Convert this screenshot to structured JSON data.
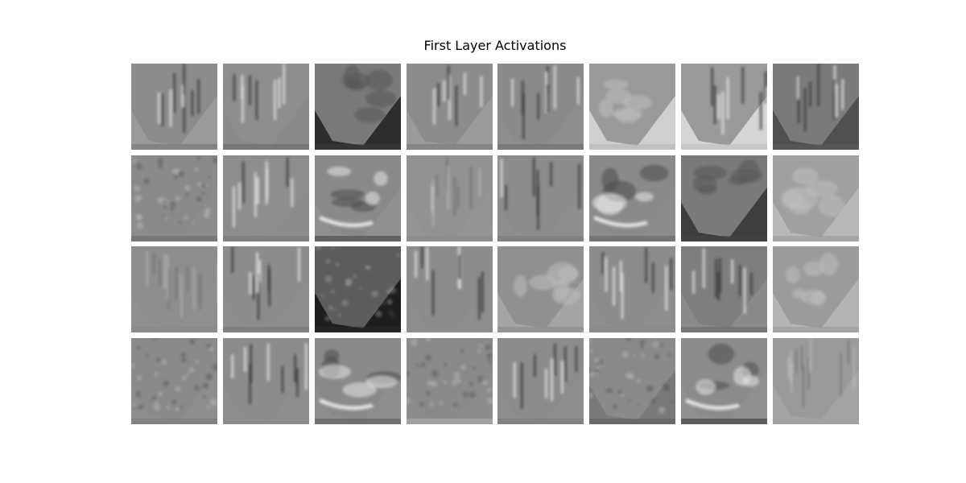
{
  "title": "First Layer Activations",
  "grid": {
    "rows": 4,
    "cols": 8
  },
  "tiles": [
    {
      "bg": "#8c8c8c",
      "lower": "#9a9a9a",
      "pattern": "diag-right",
      "edge": "#777777"
    },
    {
      "bg": "#8e8e8e",
      "lower": "#8a8a8a",
      "pattern": "v-shape",
      "edge": "#6a6a6a"
    },
    {
      "bg": "#7a7a7a",
      "lower": "#2e2e2e",
      "pattern": "blob-dark",
      "edge": "#3a3a3a"
    },
    {
      "bg": "#8c8c8c",
      "lower": "#9a9a9a",
      "pattern": "streaks",
      "edge": "#7a7a7a"
    },
    {
      "bg": "#8a8a8a",
      "lower": "#8e8e8e",
      "pattern": "diag-right",
      "edge": "#6c6c6c"
    },
    {
      "bg": "#9a9a9a",
      "lower": "#cfcfcf",
      "pattern": "blob-light",
      "edge": "#b5b5b5"
    },
    {
      "bg": "#9a9a9a",
      "lower": "#d5d5d5",
      "pattern": "streaks",
      "edge": "#c0c0c0"
    },
    {
      "bg": "#7a7a7a",
      "lower": "#505050",
      "pattern": "streaks",
      "edge": "#5a5a5a"
    },
    {
      "bg": "#8a8a8a",
      "lower": "#8c8c8c",
      "pattern": "texture",
      "edge": "#6a6a6a"
    },
    {
      "bg": "#8e8e8e",
      "lower": "#8c8c8c",
      "pattern": "v-shape",
      "edge": "#777777"
    },
    {
      "bg": "#8a8a8a",
      "lower": "#909090",
      "pattern": "blob-bright",
      "edge": "#444444"
    },
    {
      "bg": "#929292",
      "lower": "#949494",
      "pattern": "faint",
      "edge": "#888888"
    },
    {
      "bg": "#8c8c8c",
      "lower": "#8e8e8e",
      "pattern": "v-shape",
      "edge": "#7a7a7a"
    },
    {
      "bg": "#8a8a8a",
      "lower": "#8c8c8c",
      "pattern": "blob-bright",
      "edge": "#666666"
    },
    {
      "bg": "#7a7a7a",
      "lower": "#3e3e3e",
      "pattern": "blob-dark",
      "edge": "#444444"
    },
    {
      "bg": "#a0a0a0",
      "lower": "#b8b8b8",
      "pattern": "blob-light",
      "edge": "#9a9a9a"
    },
    {
      "bg": "#8e8e8e",
      "lower": "#909090",
      "pattern": "faint",
      "edge": "#888888"
    },
    {
      "bg": "#8c8c8c",
      "lower": "#8e8e8e",
      "pattern": "diag-right",
      "edge": "#777777"
    },
    {
      "bg": "#5c5c5c",
      "lower": "#1e1e1e",
      "pattern": "noise-dark",
      "edge": "#2a2a2a"
    },
    {
      "bg": "#8c8c8c",
      "lower": "#8e8e8e",
      "pattern": "streaks",
      "edge": "#8a8a8a"
    },
    {
      "bg": "#909090",
      "lower": "#a4a4a4",
      "pattern": "blob-light",
      "edge": "#8a8a8a"
    },
    {
      "bg": "#8c8c8c",
      "lower": "#8e8e8e",
      "pattern": "diag-right",
      "edge": "#888888"
    },
    {
      "bg": "#7e7e7e",
      "lower": "#8a8a8a",
      "pattern": "streaks",
      "edge": "#6a6a6a"
    },
    {
      "bg": "#9c9c9c",
      "lower": "#b4b4b4",
      "pattern": "blob-light",
      "edge": "#9a9a9a"
    },
    {
      "bg": "#8a8a8a",
      "lower": "#8e8e8e",
      "pattern": "texture",
      "edge": "#7a7a7a"
    },
    {
      "bg": "#8c8c8c",
      "lower": "#8e8e8e",
      "pattern": "diag-right",
      "edge": "#888888"
    },
    {
      "bg": "#8a8a8a",
      "lower": "#8e8e8e",
      "pattern": "blob-bright",
      "edge": "#5a5a5a"
    },
    {
      "bg": "#8a8a8a",
      "lower": "#8c8c8c",
      "pattern": "texture",
      "edge": "#b0b0b0"
    },
    {
      "bg": "#8c8c8c",
      "lower": "#8e8e8e",
      "pattern": "streaks",
      "edge": "#7a7a7a"
    },
    {
      "bg": "#8a8a8a",
      "lower": "#7a7a7a",
      "pattern": "texture",
      "edge": "#5e5e5e"
    },
    {
      "bg": "#8c8c8c",
      "lower": "#909090",
      "pattern": "blob-bright",
      "edge": "#3a3a3a"
    },
    {
      "bg": "#9a9a9a",
      "lower": "#a4a4a4",
      "pattern": "faint",
      "edge": "#a0a0a0"
    }
  ]
}
